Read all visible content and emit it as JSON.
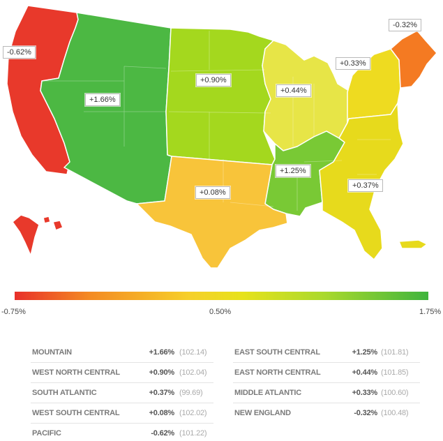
{
  "colors": {
    "pacific": "#e8392b",
    "mountain": "#4cb843",
    "west_north_central": "#a4d81e",
    "east_north_central": "#e7e547",
    "east_south_central": "#79c935",
    "west_south_central": "#f8c43a",
    "south_atlantic": "#e7da1c",
    "middle_atlantic": "#eedb20",
    "new_england": "#f47a22"
  },
  "map": {
    "callouts": {
      "pacific": "-0.62%",
      "mountain": "+1.66%",
      "west_north_central": "+0.90%",
      "east_north_central": "+0.44%",
      "middle_atlantic": "+0.33%",
      "new_england": "-0.32%",
      "east_south_central": "+1.25%",
      "south_atlantic": "+0.37%",
      "west_south_central": "+0.08%"
    }
  },
  "scale": {
    "min": "-0.75%",
    "mid": "0.50%",
    "max": "1.75%"
  },
  "stats": {
    "left": [
      {
        "name": "MOUNTAIN",
        "change": "+1.66%",
        "index": "(102.14)"
      },
      {
        "name": "WEST NORTH CENTRAL",
        "change": "+0.90%",
        "index": "(102.04)"
      },
      {
        "name": "SOUTH ATLANTIC",
        "change": "+0.37%",
        "index": "(99.69)"
      },
      {
        "name": "WEST SOUTH CENTRAL",
        "change": "+0.08%",
        "index": "(102.02)"
      },
      {
        "name": "PACIFIC",
        "change": "-0.62%",
        "index": "(101.22)"
      }
    ],
    "right": [
      {
        "name": "EAST SOUTH CENTRAL",
        "change": "+1.25%",
        "index": "(101.81)"
      },
      {
        "name": "EAST NORTH CENTRAL",
        "change": "+0.44%",
        "index": "(101.85)"
      },
      {
        "name": "MIDDLE ATLANTIC",
        "change": "+0.33%",
        "index": "(100.60)"
      },
      {
        "name": "NEW ENGLAND",
        "change": "-0.32%",
        "index": "(100.48)"
      }
    ]
  }
}
